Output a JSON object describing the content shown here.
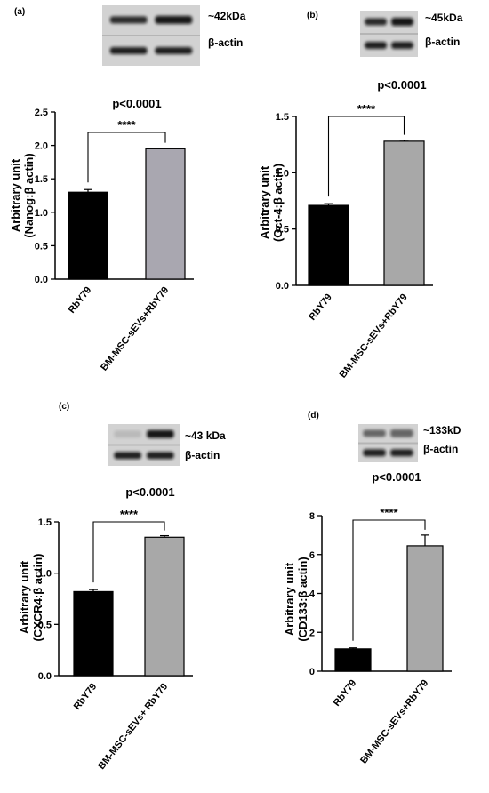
{
  "panels": [
    {
      "letter": "(a)",
      "pvalue": "p<0.0001",
      "stars": "****",
      "blot": {
        "target_label": "~42kDa",
        "control_label": "β-actin"
      },
      "chart_data": {
        "type": "bar",
        "categories": [
          "RbY79",
          "BM-MSC-sEVs+RbY79"
        ],
        "values": [
          1.3,
          1.95
        ],
        "errors": [
          0.04,
          0.01
        ],
        "colors": [
          "#000000",
          "#a9a7b0"
        ],
        "ylabel_lines": [
          "Arbitrary unit",
          "(Nanog:β actin)"
        ],
        "ylim": [
          0,
          2.5
        ],
        "yticks": [
          "0.0",
          "0.5",
          "1.0",
          "1.5",
          "2.0",
          "2.5"
        ]
      }
    },
    {
      "letter": "(b)",
      "pvalue": "p<0.0001",
      "stars": "****",
      "blot": {
        "target_label": "~45kDa",
        "control_label": "β-actin"
      },
      "chart_data": {
        "type": "bar",
        "categories": [
          "RbY79",
          "BM-MSC-sEVs+RbY79"
        ],
        "values": [
          0.71,
          1.28
        ],
        "errors": [
          0.015,
          0.01
        ],
        "colors": [
          "#000000",
          "#a8a8a8"
        ],
        "ylabel_lines": [
          "Arbitrary unit",
          "(Oct-4:β actin)"
        ],
        "ylim": [
          0,
          1.5
        ],
        "yticks": [
          "0.0",
          "0.5",
          "1.0",
          "1.5"
        ]
      }
    },
    {
      "letter": "(c)",
      "pvalue": "p<0.0001",
      "stars": "****",
      "blot": {
        "target_label": "~43 kDa",
        "control_label": "β-actin"
      },
      "chart_data": {
        "type": "bar",
        "categories": [
          "RbY79",
          "BM-MSC-sEVs+ RbY79"
        ],
        "values": [
          0.82,
          1.35
        ],
        "errors": [
          0.02,
          0.015
        ],
        "colors": [
          "#000000",
          "#a8a8a8"
        ],
        "ylabel_lines": [
          "Arbitrary unit",
          "(CXCR4:β actin)"
        ],
        "ylim": [
          0,
          1.5
        ],
        "yticks": [
          "0.0",
          "0.5",
          "1.0",
          "1.5"
        ]
      }
    },
    {
      "letter": "(d)",
      "pvalue": "p<0.0001",
      "stars": "****",
      "blot": {
        "target_label": "~133kD",
        "control_label": "β-actin"
      },
      "chart_data": {
        "type": "bar",
        "categories": [
          "RbY79",
          "BM-MSC-sEVs+RbY79"
        ],
        "values": [
          1.15,
          6.45
        ],
        "errors": [
          0.05,
          0.55
        ],
        "colors": [
          "#000000",
          "#a8a8a8"
        ],
        "ylabel_lines": [
          "Arbitrary unit",
          "(CD133:β actin)"
        ],
        "ylim": [
          0,
          8
        ],
        "yticks": [
          "0",
          "2",
          "4",
          "6",
          "8"
        ]
      }
    }
  ]
}
